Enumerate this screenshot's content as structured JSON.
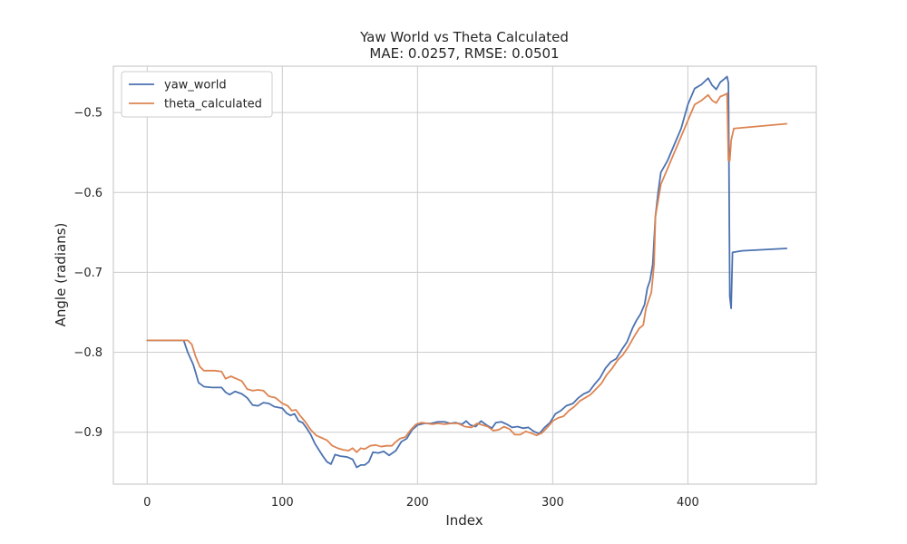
{
  "chart_data": {
    "type": "line",
    "title": "Yaw World vs Theta Calculated",
    "subtitle": "MAE: 0.0257, RMSE: 0.0501",
    "xlabel": "Index",
    "ylabel": "Angle (radians)",
    "xlim": [
      -25,
      495
    ],
    "ylim": [
      -0.965,
      -0.442
    ],
    "xticks": [
      0,
      100,
      200,
      300,
      400
    ],
    "xtick_labels": [
      "0",
      "100",
      "200",
      "300",
      "400"
    ],
    "yticks": [
      -0.9,
      -0.8,
      -0.7,
      -0.6,
      -0.5
    ],
    "ytick_labels": [
      "−0.9",
      "−0.8",
      "−0.7",
      "−0.6",
      "−0.5"
    ],
    "grid": true,
    "legend_position": "top-left",
    "series": [
      {
        "name": "yaw_world",
        "color": "#4c72b0",
        "points": [
          [
            0,
            -0.785
          ],
          [
            27,
            -0.785
          ],
          [
            30,
            -0.8
          ],
          [
            34,
            -0.815
          ],
          [
            36,
            -0.826
          ],
          [
            38,
            -0.838
          ],
          [
            42,
            -0.843
          ],
          [
            48,
            -0.844
          ],
          [
            55,
            -0.844
          ],
          [
            58,
            -0.85
          ],
          [
            61,
            -0.853
          ],
          [
            65,
            -0.849
          ],
          [
            70,
            -0.852
          ],
          [
            74,
            -0.857
          ],
          [
            78,
            -0.866
          ],
          [
            82,
            -0.867
          ],
          [
            86,
            -0.863
          ],
          [
            90,
            -0.864
          ],
          [
            94,
            -0.868
          ],
          [
            100,
            -0.87
          ],
          [
            103,
            -0.876
          ],
          [
            106,
            -0.879
          ],
          [
            109,
            -0.877
          ],
          [
            112,
            -0.886
          ],
          [
            115,
            -0.888
          ],
          [
            118,
            -0.895
          ],
          [
            121,
            -0.903
          ],
          [
            124,
            -0.914
          ],
          [
            127,
            -0.922
          ],
          [
            130,
            -0.93
          ],
          [
            133,
            -0.937
          ],
          [
            136,
            -0.94
          ],
          [
            139,
            -0.928
          ],
          [
            143,
            -0.93
          ],
          [
            148,
            -0.931
          ],
          [
            152,
            -0.934
          ],
          [
            155,
            -0.944
          ],
          [
            158,
            -0.941
          ],
          [
            161,
            -0.941
          ],
          [
            164,
            -0.937
          ],
          [
            167,
            -0.925
          ],
          [
            171,
            -0.926
          ],
          [
            175,
            -0.924
          ],
          [
            179,
            -0.929
          ],
          [
            184,
            -0.923
          ],
          [
            188,
            -0.912
          ],
          [
            192,
            -0.908
          ],
          [
            196,
            -0.897
          ],
          [
            200,
            -0.891
          ],
          [
            205,
            -0.889
          ],
          [
            210,
            -0.889
          ],
          [
            215,
            -0.887
          ],
          [
            220,
            -0.887
          ],
          [
            224,
            -0.889
          ],
          [
            228,
            -0.888
          ],
          [
            233,
            -0.89
          ],
          [
            236,
            -0.886
          ],
          [
            239,
            -0.891
          ],
          [
            243,
            -0.893
          ],
          [
            247,
            -0.886
          ],
          [
            251,
            -0.891
          ],
          [
            255,
            -0.895
          ],
          [
            258,
            -0.888
          ],
          [
            262,
            -0.887
          ],
          [
            266,
            -0.89
          ],
          [
            270,
            -0.894
          ],
          [
            274,
            -0.893
          ],
          [
            278,
            -0.895
          ],
          [
            282,
            -0.894
          ],
          [
            286,
            -0.899
          ],
          [
            290,
            -0.902
          ],
          [
            294,
            -0.894
          ],
          [
            298,
            -0.888
          ],
          [
            302,
            -0.877
          ],
          [
            306,
            -0.873
          ],
          [
            310,
            -0.867
          ],
          [
            315,
            -0.864
          ],
          [
            319,
            -0.857
          ],
          [
            323,
            -0.852
          ],
          [
            327,
            -0.849
          ],
          [
            331,
            -0.84
          ],
          [
            335,
            -0.832
          ],
          [
            339,
            -0.82
          ],
          [
            343,
            -0.812
          ],
          [
            347,
            -0.808
          ],
          [
            351,
            -0.797
          ],
          [
            355,
            -0.787
          ],
          [
            359,
            -0.77
          ],
          [
            362,
            -0.76
          ],
          [
            365,
            -0.752
          ],
          [
            368,
            -0.74
          ],
          [
            370,
            -0.72
          ],
          [
            372,
            -0.71
          ],
          [
            374,
            -0.69
          ],
          [
            376,
            -0.63
          ],
          [
            378,
            -0.6
          ],
          [
            380,
            -0.575
          ],
          [
            385,
            -0.56
          ],
          [
            390,
            -0.54
          ],
          [
            395,
            -0.52
          ],
          [
            400,
            -0.49
          ],
          [
            405,
            -0.47
          ],
          [
            410,
            -0.465
          ],
          [
            415,
            -0.457
          ],
          [
            418,
            -0.466
          ],
          [
            421,
            -0.471
          ],
          [
            424,
            -0.462
          ],
          [
            427,
            -0.458
          ],
          [
            429,
            -0.455
          ],
          [
            430,
            -0.463
          ],
          [
            431,
            -0.73
          ],
          [
            432,
            -0.745
          ],
          [
            433,
            -0.675
          ],
          [
            440,
            -0.673
          ],
          [
            473,
            -0.67
          ]
        ]
      },
      {
        "name": "theta_calculated",
        "color": "#dd8452",
        "points": [
          [
            0,
            -0.785
          ],
          [
            30,
            -0.785
          ],
          [
            33,
            -0.79
          ],
          [
            36,
            -0.806
          ],
          [
            39,
            -0.818
          ],
          [
            42,
            -0.823
          ],
          [
            50,
            -0.823
          ],
          [
            55,
            -0.824
          ],
          [
            58,
            -0.833
          ],
          [
            62,
            -0.83
          ],
          [
            66,
            -0.833
          ],
          [
            70,
            -0.836
          ],
          [
            74,
            -0.846
          ],
          [
            78,
            -0.848
          ],
          [
            82,
            -0.847
          ],
          [
            86,
            -0.848
          ],
          [
            90,
            -0.855
          ],
          [
            95,
            -0.857
          ],
          [
            100,
            -0.864
          ],
          [
            104,
            -0.867
          ],
          [
            107,
            -0.873
          ],
          [
            110,
            -0.872
          ],
          [
            113,
            -0.879
          ],
          [
            117,
            -0.887
          ],
          [
            121,
            -0.897
          ],
          [
            125,
            -0.904
          ],
          [
            129,
            -0.907
          ],
          [
            133,
            -0.91
          ],
          [
            137,
            -0.917
          ],
          [
            141,
            -0.92
          ],
          [
            145,
            -0.922
          ],
          [
            149,
            -0.923
          ],
          [
            152,
            -0.92
          ],
          [
            155,
            -0.925
          ],
          [
            158,
            -0.92
          ],
          [
            161,
            -0.921
          ],
          [
            165,
            -0.917
          ],
          [
            169,
            -0.916
          ],
          [
            173,
            -0.918
          ],
          [
            177,
            -0.917
          ],
          [
            181,
            -0.917
          ],
          [
            184,
            -0.912
          ],
          [
            187,
            -0.908
          ],
          [
            191,
            -0.906
          ],
          [
            195,
            -0.897
          ],
          [
            199,
            -0.89
          ],
          [
            203,
            -0.888
          ],
          [
            207,
            -0.889
          ],
          [
            211,
            -0.89
          ],
          [
            215,
            -0.889
          ],
          [
            220,
            -0.89
          ],
          [
            225,
            -0.889
          ],
          [
            230,
            -0.889
          ],
          [
            235,
            -0.893
          ],
          [
            240,
            -0.894
          ],
          [
            244,
            -0.889
          ],
          [
            248,
            -0.891
          ],
          [
            252,
            -0.893
          ],
          [
            256,
            -0.898
          ],
          [
            260,
            -0.897
          ],
          [
            264,
            -0.893
          ],
          [
            268,
            -0.896
          ],
          [
            272,
            -0.903
          ],
          [
            276,
            -0.903
          ],
          [
            280,
            -0.899
          ],
          [
            284,
            -0.901
          ],
          [
            288,
            -0.904
          ],
          [
            292,
            -0.901
          ],
          [
            296,
            -0.894
          ],
          [
            300,
            -0.886
          ],
          [
            304,
            -0.882
          ],
          [
            308,
            -0.88
          ],
          [
            312,
            -0.873
          ],
          [
            316,
            -0.868
          ],
          [
            320,
            -0.861
          ],
          [
            324,
            -0.857
          ],
          [
            328,
            -0.853
          ],
          [
            332,
            -0.846
          ],
          [
            336,
            -0.839
          ],
          [
            340,
            -0.828
          ],
          [
            344,
            -0.82
          ],
          [
            348,
            -0.81
          ],
          [
            352,
            -0.803
          ],
          [
            356,
            -0.793
          ],
          [
            360,
            -0.781
          ],
          [
            364,
            -0.77
          ],
          [
            367,
            -0.766
          ],
          [
            369,
            -0.745
          ],
          [
            371,
            -0.735
          ],
          [
            373,
            -0.725
          ],
          [
            375,
            -0.69
          ],
          [
            376,
            -0.63
          ],
          [
            378,
            -0.61
          ],
          [
            380,
            -0.59
          ],
          [
            385,
            -0.57
          ],
          [
            390,
            -0.55
          ],
          [
            395,
            -0.53
          ],
          [
            400,
            -0.51
          ],
          [
            405,
            -0.49
          ],
          [
            410,
            -0.485
          ],
          [
            415,
            -0.478
          ],
          [
            418,
            -0.485
          ],
          [
            421,
            -0.488
          ],
          [
            424,
            -0.48
          ],
          [
            427,
            -0.478
          ],
          [
            429,
            -0.476
          ],
          [
            430,
            -0.56
          ],
          [
            431,
            -0.56
          ],
          [
            432,
            -0.535
          ],
          [
            434,
            -0.52
          ],
          [
            473,
            -0.514
          ]
        ]
      }
    ]
  }
}
